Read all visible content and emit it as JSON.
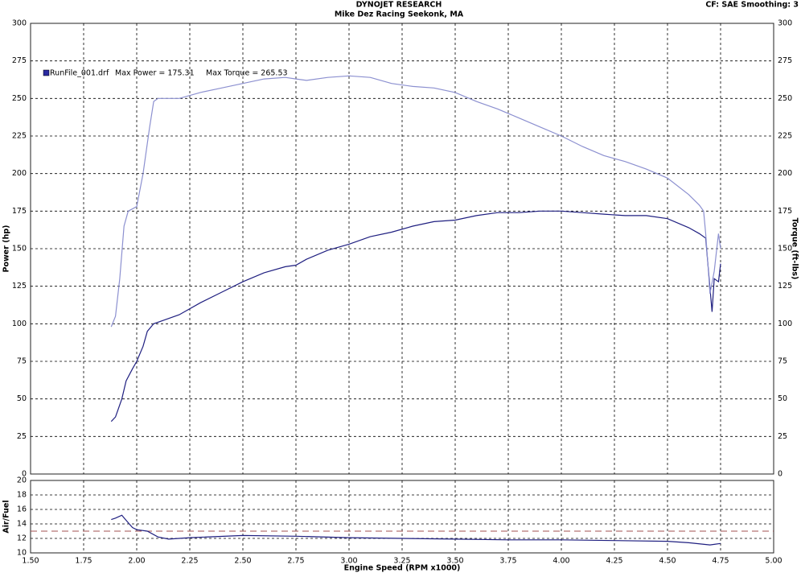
{
  "chart_data": [
    {
      "type": "line",
      "title": "DYNOJET RESEARCH",
      "subtitle": "Mike Dez Racing Seekonk, MA",
      "settings_text": "CF: SAE  Smoothing: 3",
      "ylabel": "Power (hp)",
      "y2label": "Torque (ft-lbs)",
      "legend": {
        "name": "RunFile_001.drf",
        "color": "#2a2aa0",
        "annotations": [
          "Max Power = 175.31",
          "Max Torque = 265.53"
        ]
      },
      "ylim": [
        0,
        300
      ],
      "yticks": [
        0,
        25,
        50,
        75,
        100,
        125,
        150,
        175,
        200,
        225,
        250,
        275,
        300
      ],
      "y2lim": [
        0,
        300
      ],
      "y2ticks": [
        0,
        25,
        50,
        75,
        100,
        125,
        150,
        175,
        200,
        225,
        250,
        275,
        300
      ],
      "grid": true,
      "series": [
        {
          "color": "#1f1f80",
          "x": [
            1.88,
            1.9,
            1.93,
            1.95,
            1.98,
            2.0,
            2.03,
            2.05,
            2.08,
            2.12,
            2.2,
            2.3,
            2.4,
            2.5,
            2.6,
            2.7,
            2.75,
            2.8,
            2.9,
            3.0,
            3.1,
            3.2,
            3.3,
            3.4,
            3.5,
            3.6,
            3.7,
            3.8,
            3.9,
            4.0,
            4.1,
            4.2,
            4.3,
            4.4,
            4.5,
            4.6,
            4.65,
            4.68,
            4.69,
            4.71,
            4.72,
            4.74,
            4.75
          ],
          "values": [
            35,
            38,
            50,
            62,
            70,
            75,
            85,
            95,
            100,
            102,
            106,
            114,
            121,
            128,
            134,
            138,
            139,
            143,
            149,
            153,
            158,
            161,
            165,
            168,
            169,
            172,
            174,
            174,
            175,
            175,
            174,
            173,
            172,
            172,
            170,
            164,
            160,
            157,
            140,
            108,
            130,
            128,
            140
          ]
        },
        {
          "color": "#8c90d0",
          "axis": "y2",
          "x": [
            1.88,
            1.9,
            1.92,
            1.94,
            1.96,
            2.0,
            2.03,
            2.06,
            2.08,
            2.1,
            2.2,
            2.3,
            2.4,
            2.5,
            2.6,
            2.7,
            2.75,
            2.8,
            2.9,
            3.0,
            3.1,
            3.2,
            3.3,
            3.4,
            3.5,
            3.6,
            3.7,
            3.8,
            3.9,
            4.0,
            4.1,
            4.2,
            4.3,
            4.4,
            4.5,
            4.6,
            4.65,
            4.67,
            4.68,
            4.69,
            4.7,
            4.72,
            4.74,
            4.75
          ],
          "values": [
            98,
            105,
            130,
            165,
            175,
            178,
            200,
            230,
            248,
            250,
            250,
            254,
            257,
            260,
            263,
            264,
            263,
            262,
            264,
            265,
            264,
            260,
            258,
            257,
            254,
            248,
            243,
            237,
            231,
            225,
            218,
            212,
            208,
            203,
            197,
            186,
            179,
            175,
            160,
            140,
            120,
            135,
            160,
            150
          ]
        }
      ]
    },
    {
      "type": "line",
      "xlabel": "Engine Speed (RPM x1000)",
      "ylabel": "Air/Fuel",
      "xlim": [
        1.5,
        5.0
      ],
      "xticks": [
        {
          "value": 1.5,
          "label": "1.50"
        },
        {
          "value": 1.75,
          "label": "1.75"
        },
        {
          "value": 2.0,
          "label": "2.00"
        },
        {
          "value": 2.25,
          "label": "2.25"
        },
        {
          "value": 2.5,
          "label": "2.50"
        },
        {
          "value": 2.75,
          "label": "2.75"
        },
        {
          "value": 3.0,
          "label": "3.00"
        },
        {
          "value": 3.25,
          "label": "3.25"
        },
        {
          "value": 3.5,
          "label": "3.50"
        },
        {
          "value": 3.75,
          "label": "3.75"
        },
        {
          "value": 4.0,
          "label": "4.00"
        },
        {
          "value": 4.25,
          "label": "4.25"
        },
        {
          "value": 4.5,
          "label": "4.50"
        },
        {
          "value": 4.75,
          "label": "4.75"
        },
        {
          "value": 5.0,
          "label": "5.00"
        }
      ],
      "ylim": [
        10,
        20
      ],
      "yticks": [
        10,
        12,
        14,
        16,
        18,
        20
      ],
      "grid": true,
      "reference": {
        "value": 13,
        "color": "#a05050"
      },
      "series": [
        {
          "color": "#1f1f80",
          "x": [
            1.88,
            1.9,
            1.93,
            1.95,
            1.98,
            2.0,
            2.05,
            2.1,
            2.15,
            2.25,
            2.5,
            2.75,
            3.0,
            3.25,
            3.5,
            3.75,
            4.0,
            4.25,
            4.5,
            4.6,
            4.7,
            4.75
          ],
          "values": [
            14.6,
            14.8,
            15.2,
            14.5,
            13.5,
            13.2,
            13.0,
            12.2,
            11.9,
            12.1,
            12.4,
            12.3,
            12.1,
            12.0,
            11.9,
            11.8,
            11.8,
            11.7,
            11.6,
            11.4,
            11.1,
            11.3
          ]
        }
      ]
    }
  ]
}
